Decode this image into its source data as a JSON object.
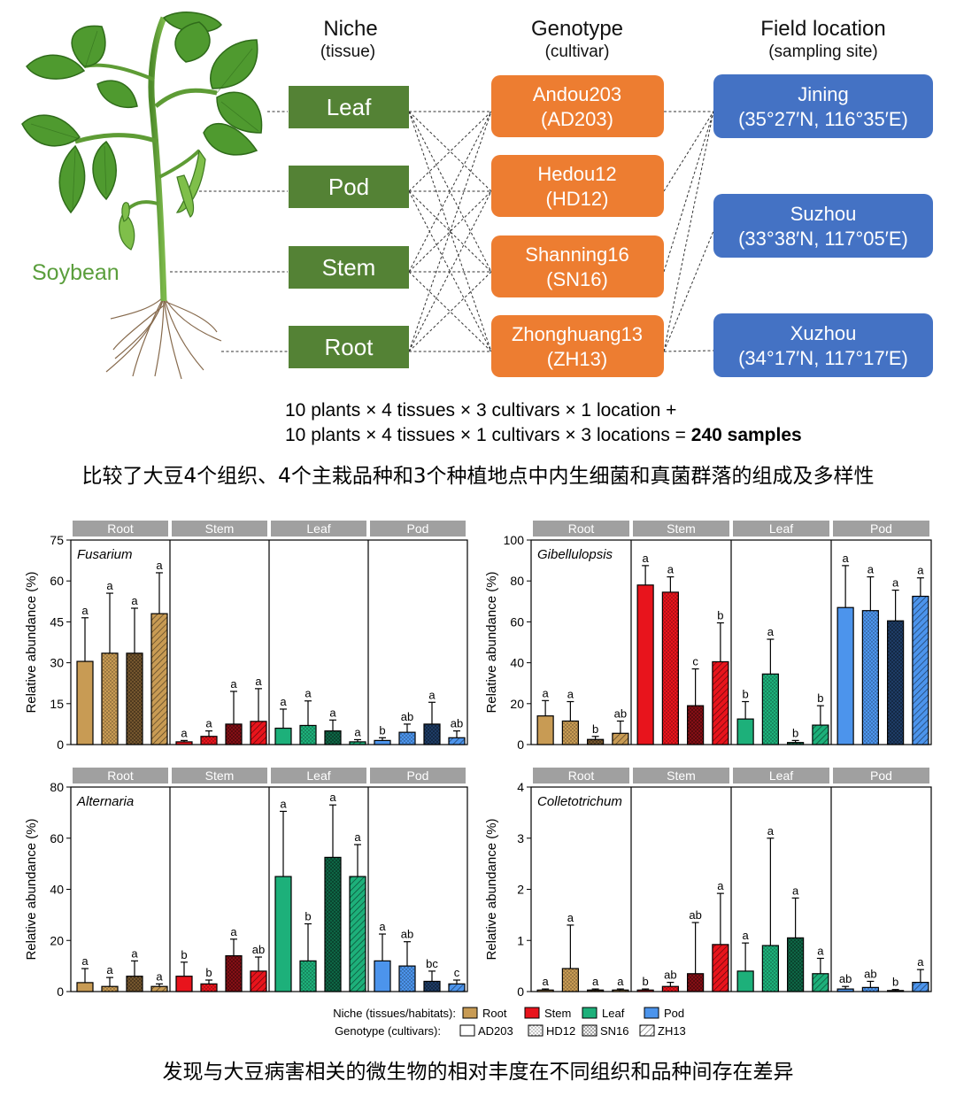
{
  "diagram": {
    "plant_label": "Soybean",
    "columns": [
      {
        "title": "Niche",
        "subtitle": "(tissue)"
      },
      {
        "title": "Genotype",
        "subtitle": "(cultivar)"
      },
      {
        "title": "Field location",
        "subtitle": "(sampling site)"
      }
    ],
    "niches": [
      "Leaf",
      "Pod",
      "Stem",
      "Root"
    ],
    "genotypes": [
      {
        "name": "Andou203",
        "code": "(AD203)"
      },
      {
        "name": "Hedou12",
        "code": "(HD12)"
      },
      {
        "name": "Shanning16",
        "code": "(SN16)"
      },
      {
        "name": "Zhonghuang13",
        "code": "(ZH13)"
      }
    ],
    "locations": [
      {
        "name": "Jining",
        "coords": "(35°27′N, 116°35′E)"
      },
      {
        "name": "Suzhou",
        "coords": "(33°38′N, 117°05′E)"
      },
      {
        "name": "Xuzhou",
        "coords": "(34°17′N, 117°17′E)"
      }
    ],
    "formula_line1": "10 plants × 4 tissues × 3 cultivars × 1 location +",
    "formula_line2": "10 plants × 4 tissues × 1 cultivars × 3 locations = ",
    "formula_bold": "240 samples",
    "caption_cn": "比较了大豆4个组织、4个主栽品种和3个种植地点中内生细菌和真菌群落的组成及多样性",
    "colors": {
      "niche": "#548235",
      "genotype": "#ED7D31",
      "location": "#4472C4",
      "plant_label": "#5a9e3c"
    }
  },
  "chart_data": [
    {
      "type": "bar",
      "genus": "Fusarium",
      "ylabel": "Relative abundance (%)",
      "ylim": [
        0,
        75
      ],
      "yticks": [
        0,
        15,
        30,
        45,
        60,
        75
      ],
      "panels": [
        "Root",
        "Stem",
        "Leaf",
        "Pod"
      ],
      "categories": [
        "AD203",
        "HD12",
        "SN16",
        "ZH13"
      ],
      "values": [
        [
          30.5,
          33.5,
          33.5,
          48
        ],
        [
          1,
          3,
          7.5,
          8.5
        ],
        [
          6,
          7,
          5,
          1
        ],
        [
          1.5,
          4.5,
          7.5,
          2.5
        ]
      ],
      "errors": [
        [
          16,
          22,
          16.5,
          15
        ],
        [
          0.5,
          2,
          12,
          12
        ],
        [
          7,
          9,
          4,
          0.8
        ],
        [
          1,
          3,
          8,
          2.5
        ]
      ],
      "letters": [
        [
          "a",
          "a",
          "a",
          "a"
        ],
        [
          "a",
          "a",
          "a",
          "a"
        ],
        [
          "a",
          "a",
          "a",
          "a"
        ],
        [
          "b",
          "ab",
          "a",
          "ab"
        ]
      ]
    },
    {
      "type": "bar",
      "genus": "Gibellulopsis",
      "ylabel": "Relative abundance (%)",
      "ylim": [
        0,
        100
      ],
      "yticks": [
        0,
        20,
        40,
        60,
        80,
        100
      ],
      "panels": [
        "Root",
        "Stem",
        "Leaf",
        "Pod"
      ],
      "categories": [
        "AD203",
        "HD12",
        "SN16",
        "ZH13"
      ],
      "values": [
        [
          14,
          11.5,
          2.5,
          5.5
        ],
        [
          78,
          74.5,
          19,
          40.5
        ],
        [
          12.5,
          34.5,
          1,
          9.5
        ],
        [
          67,
          65.5,
          60.5,
          72.5
        ]
      ],
      "errors": [
        [
          7.5,
          9.5,
          1.5,
          6
        ],
        [
          9.5,
          7.5,
          18,
          19
        ],
        [
          8.5,
          17,
          1,
          9.5
        ],
        [
          20.5,
          16.5,
          15,
          9
        ]
      ],
      "letters": [
        [
          "a",
          "a",
          "b",
          "ab"
        ],
        [
          "a",
          "a",
          "c",
          "b"
        ],
        [
          "b",
          "a",
          "b",
          "b"
        ],
        [
          "a",
          "a",
          "a",
          "a"
        ]
      ]
    },
    {
      "type": "bar",
      "genus": "Alternaria",
      "ylabel": "Relative abundance (%)",
      "ylim": [
        0,
        80
      ],
      "yticks": [
        0,
        20,
        40,
        60,
        80
      ],
      "panels": [
        "Root",
        "Stem",
        "Leaf",
        "Pod"
      ],
      "categories": [
        "AD203",
        "HD12",
        "SN16",
        "ZH13"
      ],
      "values": [
        [
          3.5,
          2,
          6,
          2
        ],
        [
          6,
          3,
          14,
          8
        ],
        [
          45,
          12,
          52.5,
          45
        ],
        [
          12,
          10,
          4,
          3
        ]
      ],
      "errors": [
        [
          5.5,
          3.5,
          6,
          1
        ],
        [
          5.5,
          1.5,
          6.5,
          5.5
        ],
        [
          25.5,
          14.5,
          20.5,
          12.5
        ],
        [
          10.5,
          9.5,
          4,
          1.5
        ]
      ],
      "letters": [
        [
          "a",
          "a",
          "a",
          "a"
        ],
        [
          "b",
          "b",
          "a",
          "ab"
        ],
        [
          "a",
          "b",
          "a",
          "a"
        ],
        [
          "a",
          "ab",
          "bc",
          "c"
        ]
      ]
    },
    {
      "type": "bar",
      "genus": "Colletotrichum",
      "ylabel": "Relative abundance (%)",
      "ylim": [
        0,
        4
      ],
      "yticks": [
        0,
        1,
        2,
        3,
        4
      ],
      "panels": [
        "Root",
        "Stem",
        "Leaf",
        "Pod"
      ],
      "categories": [
        "AD203",
        "HD12",
        "SN16",
        "ZH13"
      ],
      "values": [
        [
          0.03,
          0.45,
          0.03,
          0.03
        ],
        [
          0.03,
          0.1,
          0.35,
          0.92
        ],
        [
          0.4,
          0.9,
          1.05,
          0.35
        ],
        [
          0.05,
          0.08,
          0.02,
          0.18
        ]
      ],
      "errors": [
        [
          0.02,
          0.85,
          0.02,
          0.02
        ],
        [
          0.02,
          0.08,
          1.0,
          1.0
        ],
        [
          0.55,
          2.1,
          0.78,
          0.3
        ],
        [
          0.05,
          0.12,
          0.02,
          0.25
        ]
      ],
      "letters": [
        [
          "a",
          "a",
          "a",
          "a"
        ],
        [
          "b",
          "ab",
          "ab",
          "a"
        ],
        [
          "a",
          "a",
          "a",
          "a"
        ],
        [
          "ab",
          "ab",
          "b",
          "a"
        ]
      ]
    }
  ],
  "legend": {
    "niche_label": "Niche (tissues/habitats):",
    "niche_items": [
      "Root",
      "Stem",
      "Leaf",
      "Pod"
    ],
    "genotype_label": "Genotype (cultivars):",
    "genotype_items": [
      "AD203",
      "HD12",
      "SN16",
      "ZH13"
    ]
  },
  "tissue_colors": {
    "Root": "#C89B54",
    "Stem": "#E8141C",
    "Leaf": "#1DB07A",
    "Pod": "#4C94EC"
  },
  "caption2_cn": "发现与大豆病害相关的微生物的相对丰度在不同组织和品种间存在差异"
}
